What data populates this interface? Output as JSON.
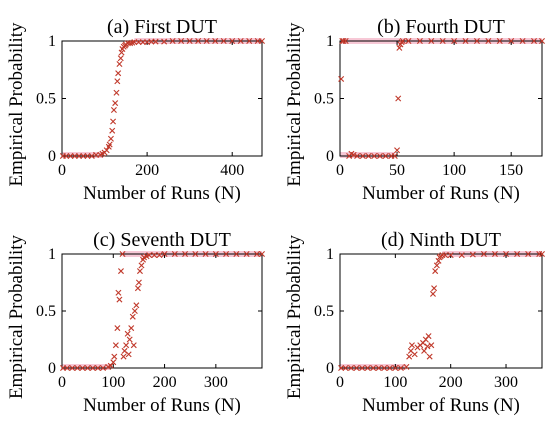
{
  "chart_data": [
    {
      "type": "scatter",
      "title": "(a) First DUT",
      "xlabel": "Number of Runs (N)",
      "ylabel": "Empirical Probability",
      "xlim": [
        0,
        470
      ],
      "ylim": [
        0,
        1
      ],
      "xticks": [
        0,
        200,
        400
      ],
      "yticks": [
        0,
        0.5,
        1
      ],
      "marker": "x",
      "color": "#c0392b",
      "x": [
        2,
        10,
        20,
        30,
        40,
        50,
        60,
        70,
        80,
        90,
        95,
        100,
        105,
        110,
        112,
        115,
        118,
        120,
        122,
        125,
        128,
        130,
        132,
        135,
        138,
        140,
        142,
        145,
        148,
        150,
        155,
        160,
        165,
        170,
        180,
        190,
        200,
        210,
        220,
        240,
        260,
        280,
        300,
        320,
        340,
        360,
        380,
        400,
        420,
        440,
        460,
        470
      ],
      "y": [
        0,
        0,
        0,
        0,
        0,
        0,
        0,
        0,
        0.01,
        0.01,
        0.02,
        0.03,
        0.05,
        0.08,
        0.1,
        0.15,
        0.22,
        0.3,
        0.4,
        0.46,
        0.55,
        0.65,
        0.72,
        0.8,
        0.85,
        0.9,
        0.93,
        0.95,
        0.96,
        0.97,
        0.98,
        0.98,
        0.985,
        0.99,
        0.99,
        0.99,
        0.99,
        0.995,
        0.995,
        0.995,
        1,
        1,
        1,
        1,
        1,
        1,
        1,
        1,
        1,
        1,
        1,
        1
      ]
    },
    {
      "type": "scatter",
      "title": "(b) Fourth DUT",
      "xlabel": "Number of Runs (N)",
      "ylabel": "Empirical Probability",
      "xlim": [
        0,
        177
      ],
      "ylim": [
        0,
        1
      ],
      "xticks": [
        0,
        50,
        100,
        150
      ],
      "yticks": [
        0,
        0.5,
        1
      ],
      "marker": "x",
      "color": "#c0392b",
      "x": [
        1,
        2,
        3,
        5,
        8,
        10,
        12,
        15,
        20,
        25,
        30,
        35,
        40,
        45,
        48,
        50,
        51,
        52,
        53,
        54,
        55,
        60,
        70,
        80,
        90,
        100,
        110,
        120,
        130,
        140,
        150,
        160,
        170,
        177
      ],
      "y": [
        0.67,
        1,
        1,
        1,
        0,
        0.02,
        0.01,
        0,
        0,
        0,
        0,
        0,
        0,
        0,
        0,
        0.05,
        0.5,
        0.94,
        0.97,
        0.99,
        1,
        1,
        1,
        1,
        1,
        1,
        1,
        1,
        1,
        1,
        1,
        1,
        1,
        1
      ]
    },
    {
      "type": "scatter",
      "title": "(c) Seventh DUT",
      "xlabel": "Number of Runs (N)",
      "ylabel": "Empirical Probability",
      "xlim": [
        0,
        390
      ],
      "ylim": [
        0,
        1
      ],
      "xticks": [
        0,
        100,
        200,
        300
      ],
      "yticks": [
        0,
        0.5,
        1
      ],
      "marker": "x",
      "color": "#c0392b",
      "x": [
        2,
        10,
        20,
        30,
        40,
        50,
        60,
        70,
        80,
        90,
        95,
        100,
        102,
        105,
        108,
        110,
        112,
        115,
        118,
        120,
        122,
        125,
        128,
        130,
        132,
        135,
        138,
        140,
        142,
        145,
        148,
        150,
        152,
        155,
        158,
        160,
        165,
        170,
        180,
        190,
        200,
        220,
        240,
        260,
        280,
        300,
        320,
        340,
        360,
        380,
        390
      ],
      "y": [
        0,
        0,
        0,
        0,
        0,
        0,
        0,
        0,
        0,
        0.01,
        0.02,
        0.05,
        0.1,
        0.2,
        0.35,
        0.66,
        0.6,
        0.85,
        1,
        0.1,
        0.15,
        0.2,
        0.3,
        0.12,
        0.25,
        0.35,
        0.45,
        0.2,
        0.5,
        0.55,
        0.7,
        0.75,
        0.85,
        0.9,
        0.95,
        0.97,
        0.98,
        0.99,
        0.99,
        0.99,
        1,
        1,
        1,
        1,
        1,
        1,
        1,
        1,
        1,
        1,
        1
      ]
    },
    {
      "type": "scatter",
      "title": "(d) Ninth DUT",
      "xlabel": "Number of Runs (N)",
      "ylabel": "Empirical Probability",
      "xlim": [
        0,
        365
      ],
      "ylim": [
        0,
        1
      ],
      "xticks": [
        0,
        100,
        200,
        300
      ],
      "yticks": [
        0,
        0.5,
        1
      ],
      "marker": "x",
      "color": "#c0392b",
      "x": [
        2,
        10,
        20,
        30,
        40,
        50,
        60,
        70,
        80,
        90,
        100,
        110,
        120,
        125,
        128,
        130,
        135,
        140,
        145,
        150,
        152,
        155,
        158,
        160,
        162,
        165,
        168,
        170,
        172,
        175,
        178,
        180,
        182,
        185,
        190,
        200,
        220,
        240,
        260,
        280,
        300,
        320,
        340,
        360,
        365
      ],
      "y": [
        0,
        0,
        0,
        0,
        0,
        0,
        0,
        0,
        0,
        0,
        0,
        0,
        0.01,
        0.1,
        0.15,
        0.2,
        0.12,
        0.18,
        0.2,
        0.22,
        0.15,
        0.25,
        0.19,
        0.28,
        0.1,
        0.2,
        0.65,
        0.7,
        0.85,
        0.9,
        0.94,
        0.97,
        0.98,
        0.99,
        0.99,
        0.99,
        0.99,
        0.995,
        1,
        1,
        1,
        1,
        1,
        1,
        1
      ]
    }
  ]
}
